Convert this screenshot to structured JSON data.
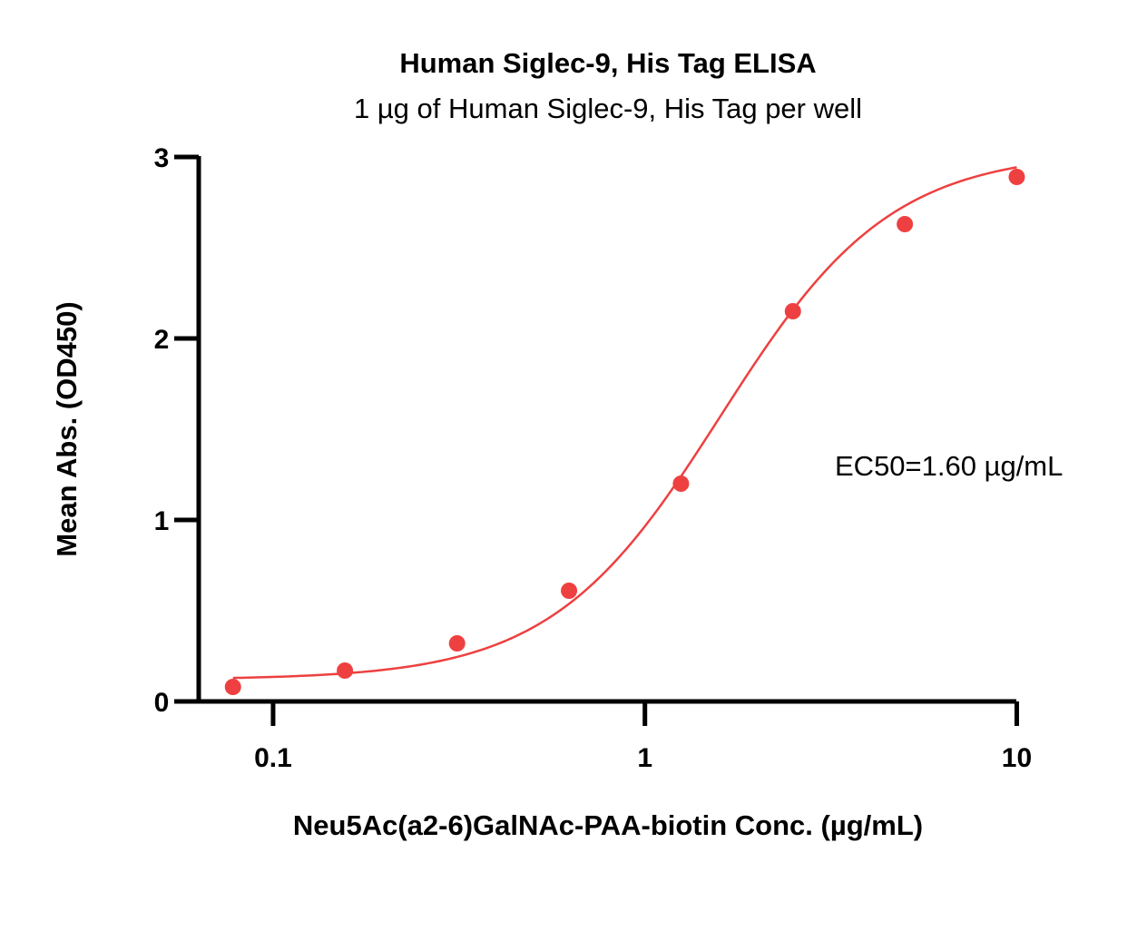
{
  "chart_data": {
    "type": "scatter",
    "title": "Human Siglec-9, His Tag ELISA",
    "subtitle": "1 µg of Human Siglec-9, His Tag per well",
    "xlabel": "Neu5Ac(a2-6)GalNAc-PAA-biotin Conc. (µg/mL)",
    "ylabel": "Mean Abs. (OD450)",
    "x_scale": "log",
    "xlim": [
      0.0631,
      10.2
    ],
    "ylim": [
      0,
      3
    ],
    "x_ticks": [
      {
        "value": 0.1,
        "label": "0.1"
      },
      {
        "value": 1,
        "label": "1"
      },
      {
        "value": 10,
        "label": "10"
      }
    ],
    "y_ticks": [
      {
        "value": 0,
        "label": "0"
      },
      {
        "value": 1,
        "label": "1"
      },
      {
        "value": 2,
        "label": "2"
      },
      {
        "value": 3,
        "label": "3"
      }
    ],
    "series": [
      {
        "color": "#ee4040",
        "points": [
          {
            "x": 0.078,
            "y": 0.08
          },
          {
            "x": 0.156,
            "y": 0.17
          },
          {
            "x": 0.3125,
            "y": 0.32
          },
          {
            "x": 0.625,
            "y": 0.61
          },
          {
            "x": 1.25,
            "y": 1.2
          },
          {
            "x": 2.5,
            "y": 2.15
          },
          {
            "x": 5,
            "y": 2.63
          },
          {
            "x": 10,
            "y": 2.89
          }
        ],
        "fit": {
          "model": "4PL",
          "bottom": 0.12,
          "top": 3.03,
          "ec50": 1.6,
          "hill": 1.9,
          "x_range": [
            0.078,
            10
          ]
        }
      }
    ],
    "grid": false,
    "legend": "none",
    "annotations": [
      {
        "text": "EC50=1.60 µg/mL"
      }
    ]
  }
}
